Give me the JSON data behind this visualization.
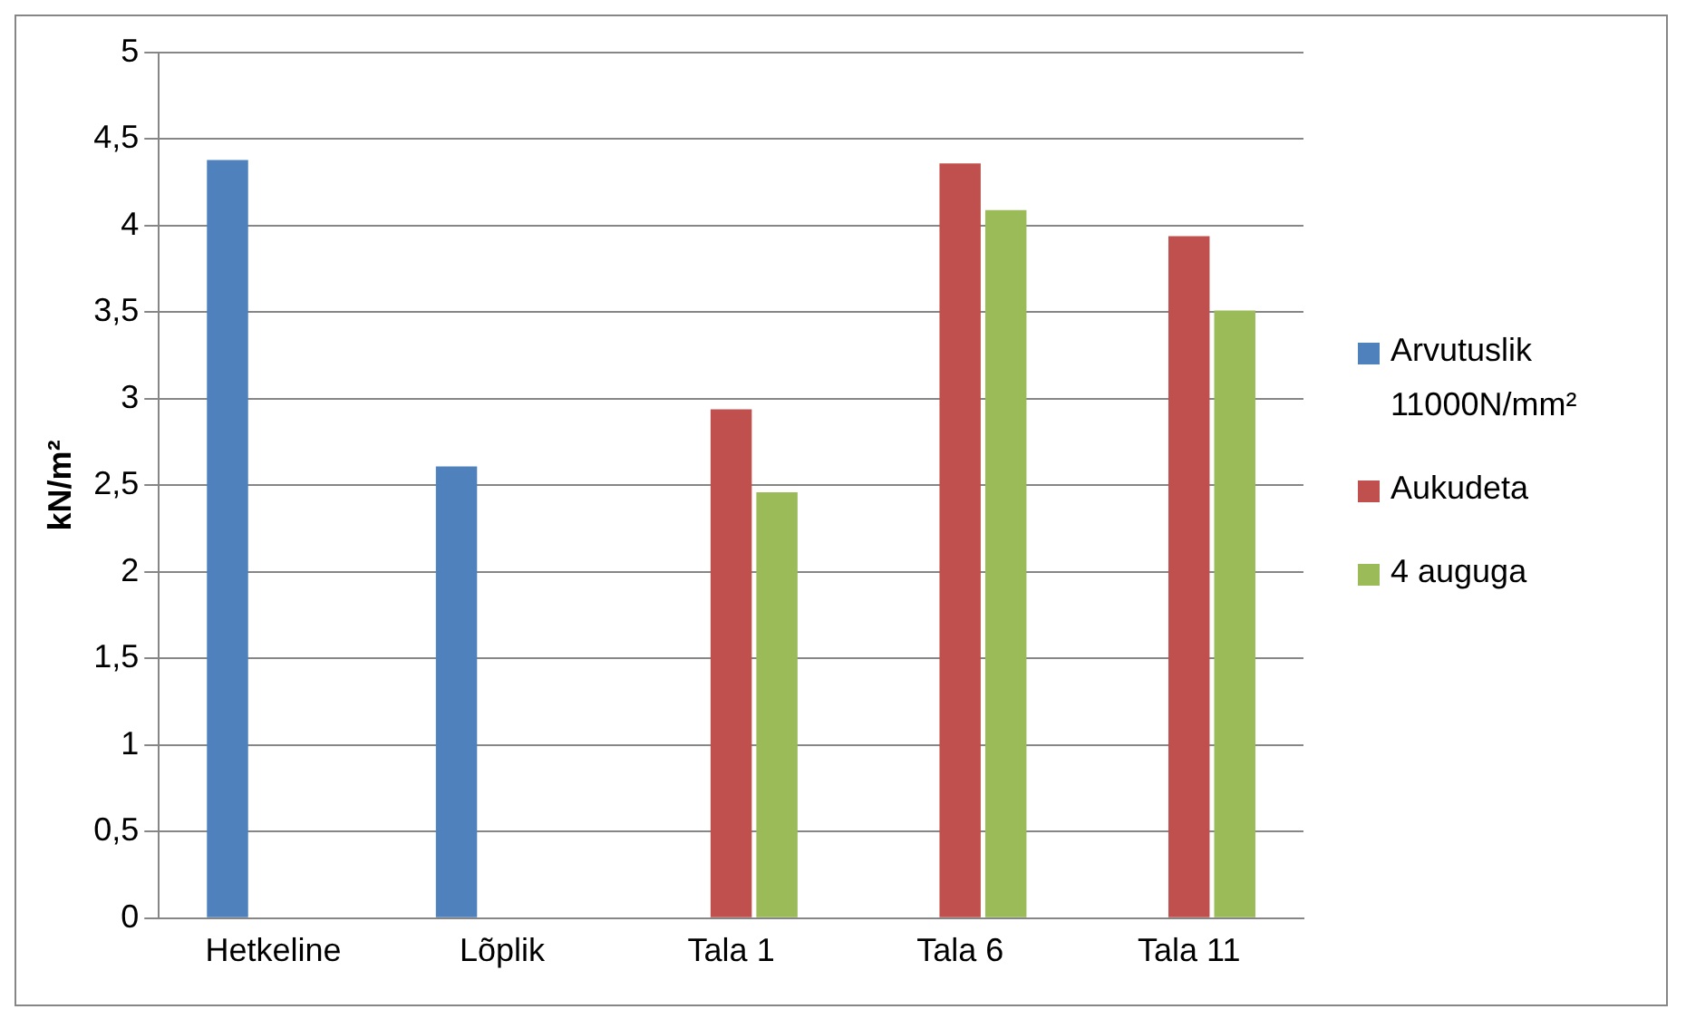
{
  "chart_data": {
    "type": "bar",
    "ylabel": "kN/m²",
    "categories": [
      "Hetkeline",
      "Lõplik",
      "Tala 1",
      "Tala 6",
      "Tala 11"
    ],
    "series": [
      {
        "name": "Arvutuslik 11000N/mm²",
        "color": "#4f81bd",
        "values": [
          4.38,
          2.61,
          null,
          null,
          null
        ]
      },
      {
        "name": "Aukudeta",
        "color": "#c0504d",
        "values": [
          null,
          null,
          2.94,
          4.36,
          3.94
        ]
      },
      {
        "name": "4 auguga",
        "color": "#9bbb59",
        "values": [
          null,
          null,
          2.46,
          4.09,
          3.51
        ]
      }
    ],
    "ylim": [
      0,
      5
    ],
    "yticks": [
      0,
      {
        "value": 0.5,
        "label": "0,5"
      },
      1,
      {
        "value": 1.5,
        "label": "1,5"
      },
      2,
      {
        "value": 2.5,
        "label": "2,5"
      },
      3,
      {
        "value": 3.5,
        "label": "3,5"
      },
      4,
      {
        "value": 4.5,
        "label": "4,5"
      },
      5
    ],
    "grid": "y",
    "legend": "right"
  }
}
